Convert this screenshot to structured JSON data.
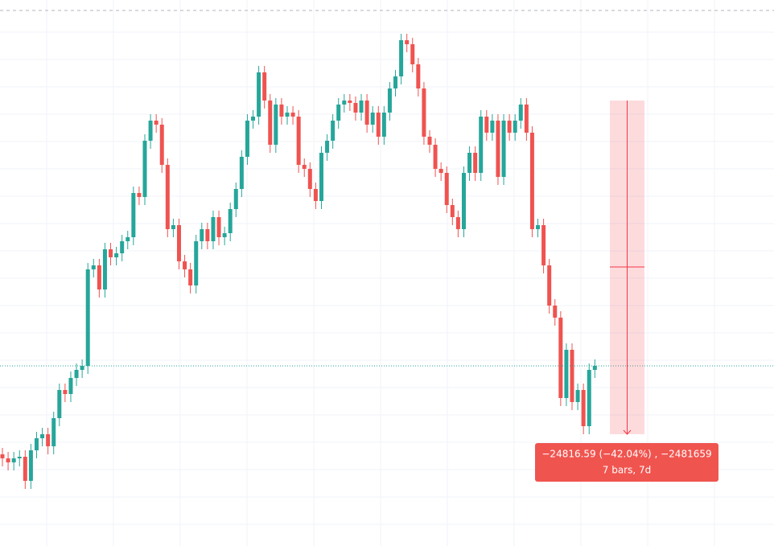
{
  "chart_data": {
    "type": "candlestick",
    "up_color": "#26a69a",
    "down_color": "#ef5350",
    "ylim": [
      25760,
      66500
    ],
    "grid": true,
    "annotations": [
      "−24816.59 (−42.04%) , −2481659",
      "7 bars, 7d"
    ],
    "open": [
      32600,
      32300,
      32000,
      32300,
      32420,
      30620,
      32900,
      33800,
      34100,
      33200,
      35300,
      37400,
      37100,
      38300,
      38900,
      39200,
      46400,
      46700,
      44900,
      47900,
      47300,
      47600,
      48500,
      48800,
      52100,
      51800,
      56000,
      57500,
      57200,
      54200,
      49400,
      49700,
      47000,
      46400,
      45200,
      48500,
      49400,
      48500,
      50300,
      48800,
      49100,
      50900,
      52400,
      54800,
      57500,
      57800,
      61100,
      59000,
      55700,
      58700,
      57800,
      58100,
      57800,
      54200,
      53900,
      52400,
      51500,
      55100,
      56000,
      57500,
      58700,
      59000,
      58820,
      58100,
      59000,
      57200,
      58100,
      56300,
      58100,
      59900,
      60800,
      63500,
      63200,
      61700,
      59900,
      56300,
      55700,
      53900,
      53600,
      51200,
      50300,
      49400,
      53600,
      55100,
      53600,
      57800,
      56600,
      57500,
      53300,
      57500,
      56600,
      57500,
      58700,
      56600,
      49400,
      49700,
      46700,
      43700,
      42800,
      36800,
      40400,
      36500,
      37400,
      34700,
      38900
    ],
    "high": [
      33080,
      32780,
      32780,
      32900,
      32900,
      33380,
      34280,
      34580,
      34580,
      35780,
      37880,
      37880,
      38780,
      39380,
      39680,
      46880,
      47180,
      47180,
      48380,
      48380,
      48080,
      48980,
      49280,
      52580,
      52580,
      56480,
      57980,
      57980,
      57680,
      54680,
      50180,
      50180,
      47480,
      46880,
      48980,
      49880,
      49880,
      50780,
      50780,
      49580,
      51380,
      52880,
      55280,
      57980,
      58280,
      61580,
      61580,
      59480,
      59180,
      59180,
      58580,
      58580,
      58280,
      54680,
      54380,
      52880,
      55580,
      56480,
      57980,
      59180,
      59480,
      59480,
      59300,
      59480,
      59480,
      58580,
      58580,
      58580,
      60380,
      61280,
      63980,
      63980,
      63680,
      62180,
      60380,
      56780,
      56180,
      54380,
      54080,
      51680,
      50780,
      54080,
      55580,
      55580,
      58280,
      58280,
      57980,
      57980,
      57980,
      57980,
      57980,
      59180,
      59180,
      57080,
      50180,
      50180,
      47180,
      44180,
      43280,
      40880,
      40880,
      37880,
      37880,
      39380,
      39680
    ],
    "low": [
      31700,
      31400,
      31400,
      31700,
      30020,
      30020,
      32300,
      33200,
      32600,
      32600,
      34700,
      36500,
      36500,
      37700,
      38300,
      38600,
      45800,
      44300,
      44300,
      46700,
      46700,
      47000,
      47900,
      48200,
      51200,
      51200,
      55400,
      56600,
      53600,
      48800,
      48800,
      46400,
      45800,
      44600,
      44600,
      47900,
      47900,
      47900,
      48200,
      48200,
      48500,
      50300,
      51800,
      54200,
      56900,
      57200,
      58400,
      55100,
      55100,
      57200,
      57200,
      57200,
      53600,
      53300,
      51800,
      50900,
      50900,
      54500,
      55400,
      56900,
      58100,
      58220,
      57500,
      57500,
      56600,
      56600,
      55700,
      55700,
      57500,
      59300,
      60200,
      62600,
      61100,
      59300,
      55700,
      55100,
      53300,
      53000,
      50600,
      49700,
      48800,
      48800,
      53000,
      53000,
      53000,
      56000,
      56000,
      52700,
      52700,
      56000,
      56000,
      56900,
      56000,
      48800,
      48800,
      46100,
      43100,
      42200,
      36200,
      36200,
      35900,
      35900,
      34100,
      34100,
      38300
    ],
    "close": [
      32300,
      32000,
      32300,
      32420,
      30620,
      32900,
      33800,
      34100,
      33200,
      35300,
      37400,
      37100,
      38300,
      38900,
      39200,
      46400,
      46700,
      44900,
      47900,
      47300,
      47600,
      48500,
      48800,
      52100,
      51800,
      56000,
      57500,
      57200,
      54200,
      49400,
      49700,
      47000,
      46400,
      45200,
      48500,
      49400,
      48500,
      50300,
      48800,
      49100,
      50900,
      52400,
      54800,
      57500,
      57800,
      61100,
      59000,
      55700,
      58700,
      57800,
      58100,
      57800,
      54200,
      53900,
      52400,
      51500,
      55100,
      56000,
      57500,
      58700,
      59000,
      58820,
      58100,
      59000,
      57200,
      58100,
      56300,
      58100,
      59900,
      60800,
      63500,
      63200,
      61700,
      59900,
      56300,
      55700,
      53900,
      53600,
      51200,
      50300,
      49400,
      53600,
      55100,
      53600,
      57800,
      56600,
      57500,
      53300,
      57500,
      56600,
      57500,
      58700,
      56600,
      49400,
      49700,
      46700,
      43700,
      42800,
      36800,
      40400,
      36500,
      37400,
      34700,
      38900,
      39200
    ]
  }
}
